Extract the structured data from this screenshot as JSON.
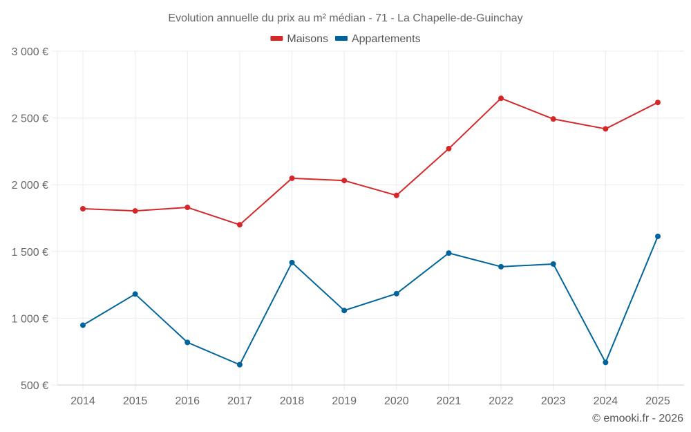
{
  "chart_data": {
    "type": "line",
    "title": "Evolution annuelle du prix au m² médian - 71 - La Chapelle-de-Guinchay",
    "xlabel": "",
    "ylabel": "",
    "categories": [
      "2014",
      "2015",
      "2016",
      "2017",
      "2018",
      "2019",
      "2020",
      "2021",
      "2022",
      "2023",
      "2024",
      "2025"
    ],
    "ylim": [
      500,
      3000
    ],
    "yticks": [
      500,
      1000,
      1500,
      2000,
      2500,
      3000
    ],
    "ytick_labels": [
      "500 €",
      "1 000 €",
      "1 500 €",
      "2 000 €",
      "2 500 €",
      "3 000 €"
    ],
    "grid": true,
    "legend_position": "top-center",
    "series": [
      {
        "name": "Maisons",
        "color": "#d62728",
        "values": [
          1820,
          1804,
          1830,
          1700,
          2048,
          2031,
          1920,
          2270,
          2647,
          2492,
          2418,
          2616
        ]
      },
      {
        "name": "Appartements",
        "color": "#00649c",
        "values": [
          948,
          1181,
          819,
          652,
          1417,
          1058,
          1184,
          1488,
          1386,
          1406,
          669,
          1613
        ]
      }
    ],
    "credit": "© emooki.fr - 2026"
  }
}
